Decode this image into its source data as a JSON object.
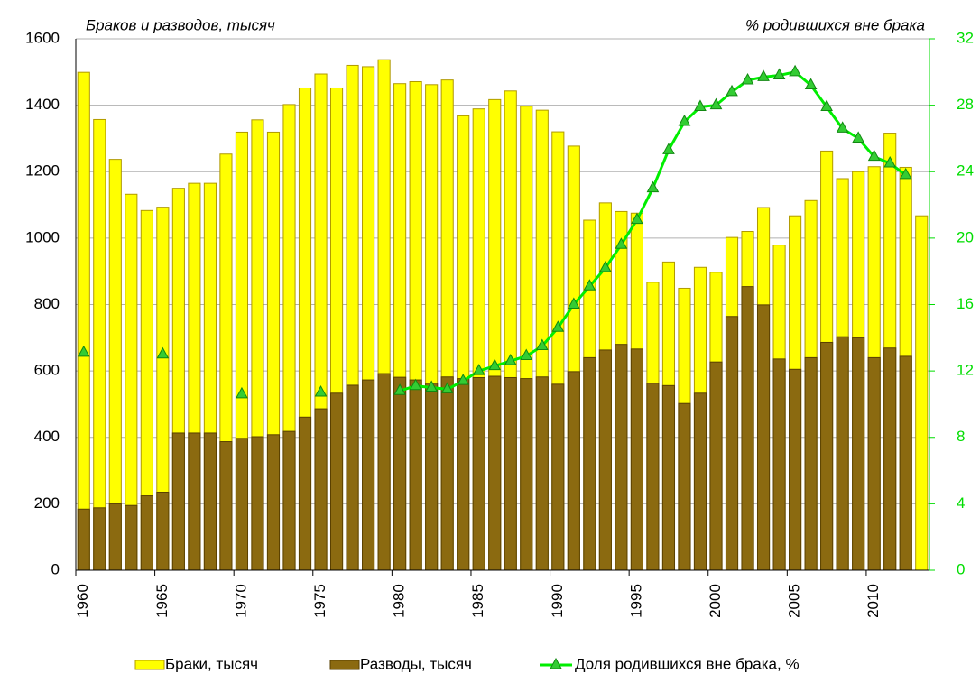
{
  "chart_data": {
    "type": "bar-line",
    "left_title": "Браков и разводов, тысяч",
    "right_title": "% родившихся вне брака",
    "categories": [
      "1960",
      null,
      null,
      null,
      null,
      "1965",
      null,
      null,
      null,
      null,
      "1970",
      null,
      null,
      null,
      null,
      "1975",
      null,
      null,
      null,
      null,
      "1980",
      null,
      null,
      null,
      null,
      "1985",
      null,
      null,
      null,
      null,
      "1990",
      null,
      null,
      null,
      null,
      "1995",
      null,
      null,
      null,
      null,
      "2000",
      null,
      null,
      null,
      null,
      "2005",
      null,
      null,
      null,
      null,
      "2010",
      null,
      null,
      null
    ],
    "series": [
      {
        "name": "Браки, тысяч",
        "type": "bar",
        "color": "#ffff00",
        "stroke": "#b09a00",
        "values": [
          1499,
          1357,
          1237,
          1132,
          1083,
          1093,
          1150,
          1165,
          1165,
          1253,
          1319,
          1356,
          1319,
          1402,
          1452,
          1494,
          1452,
          1520,
          1516,
          1537,
          1465,
          1471,
          1462,
          1476,
          1368,
          1389,
          1417,
          1443,
          1397,
          1385,
          1320,
          1277,
          1054,
          1106,
          1080,
          1075,
          867,
          928,
          849,
          912,
          897,
          1002,
          1020,
          1092,
          979,
          1067,
          1113,
          1262,
          1179,
          1200,
          1215,
          1316,
          1213,
          1067
        ]
      },
      {
        "name": "Разводы, тысяч",
        "type": "bar",
        "color": "#8b6a10",
        "stroke": "#5a4000",
        "values": [
          184,
          188,
          200,
          195,
          224,
          235,
          413,
          413,
          413,
          387,
          397,
          402,
          408,
          418,
          461,
          486,
          533,
          557,
          573,
          592,
          581,
          573,
          563,
          582,
          577,
          580,
          584,
          580,
          577,
          582,
          560,
          598,
          640,
          663,
          680,
          666,
          563,
          556,
          502,
          533,
          627,
          764,
          854,
          799,
          636,
          605,
          640,
          686,
          703,
          700,
          640,
          669,
          644,
          null
        ]
      },
      {
        "name": "Доля родившихся вне брака, %",
        "type": "line",
        "axis": "y2",
        "color": "#00ee00",
        "marker_color": "#33cc33",
        "values": [
          13.1,
          null,
          null,
          null,
          null,
          13.0,
          null,
          null,
          null,
          null,
          10.6,
          null,
          null,
          null,
          null,
          10.7,
          null,
          null,
          null,
          null,
          10.8,
          11.1,
          11.0,
          10.9,
          11.4,
          12.0,
          12.3,
          12.6,
          12.9,
          13.5,
          14.6,
          16.0,
          17.1,
          18.2,
          19.6,
          21.1,
          23.0,
          25.3,
          27.0,
          27.9,
          28.0,
          28.8,
          29.5,
          29.7,
          29.8,
          30.0,
          29.2,
          27.9,
          26.6,
          26.0,
          24.9,
          24.5,
          23.8,
          null
        ]
      }
    ],
    "ylim": [
      0,
      1600
    ],
    "yticks": [
      0,
      200,
      400,
      600,
      800,
      1000,
      1200,
      1400,
      1600
    ],
    "y2lim": [
      0,
      32
    ],
    "y2ticks": [
      0,
      4,
      8,
      12,
      16,
      20,
      24,
      28,
      32
    ],
    "y2_color": "#00dd00",
    "grid": true
  }
}
